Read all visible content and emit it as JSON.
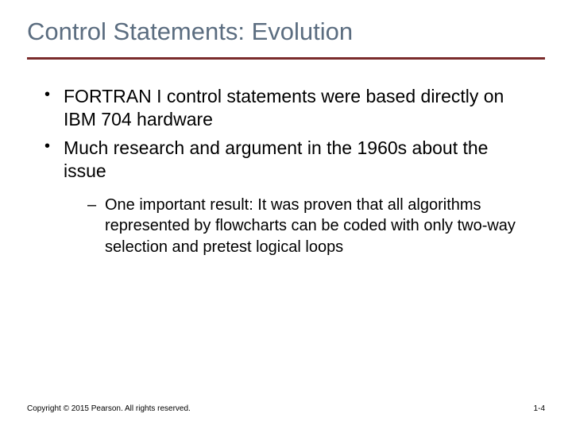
{
  "title": "Control Statements: Evolution",
  "title_color": "#5b6d80",
  "title_fontsize": 31,
  "rule_color": "#7a2b2b",
  "rule_thickness": 3,
  "background_color": "#ffffff",
  "text_color": "#000000",
  "body_fontsize_l1": 23,
  "body_fontsize_l2": 20,
  "bullets": [
    {
      "text": "FORTRAN I control statements were based directly on IBM 704 hardware"
    },
    {
      "text": "Much research and argument in the 1960s about the issue",
      "sub": [
        {
          "text": "One important result: It was proven that all algorithms represented by flowcharts can be coded with only two-way selection and pretest logical loops"
        }
      ]
    }
  ],
  "footer": {
    "copyright": "Copyright © 2015 Pearson. All rights reserved.",
    "page": "1-4"
  }
}
